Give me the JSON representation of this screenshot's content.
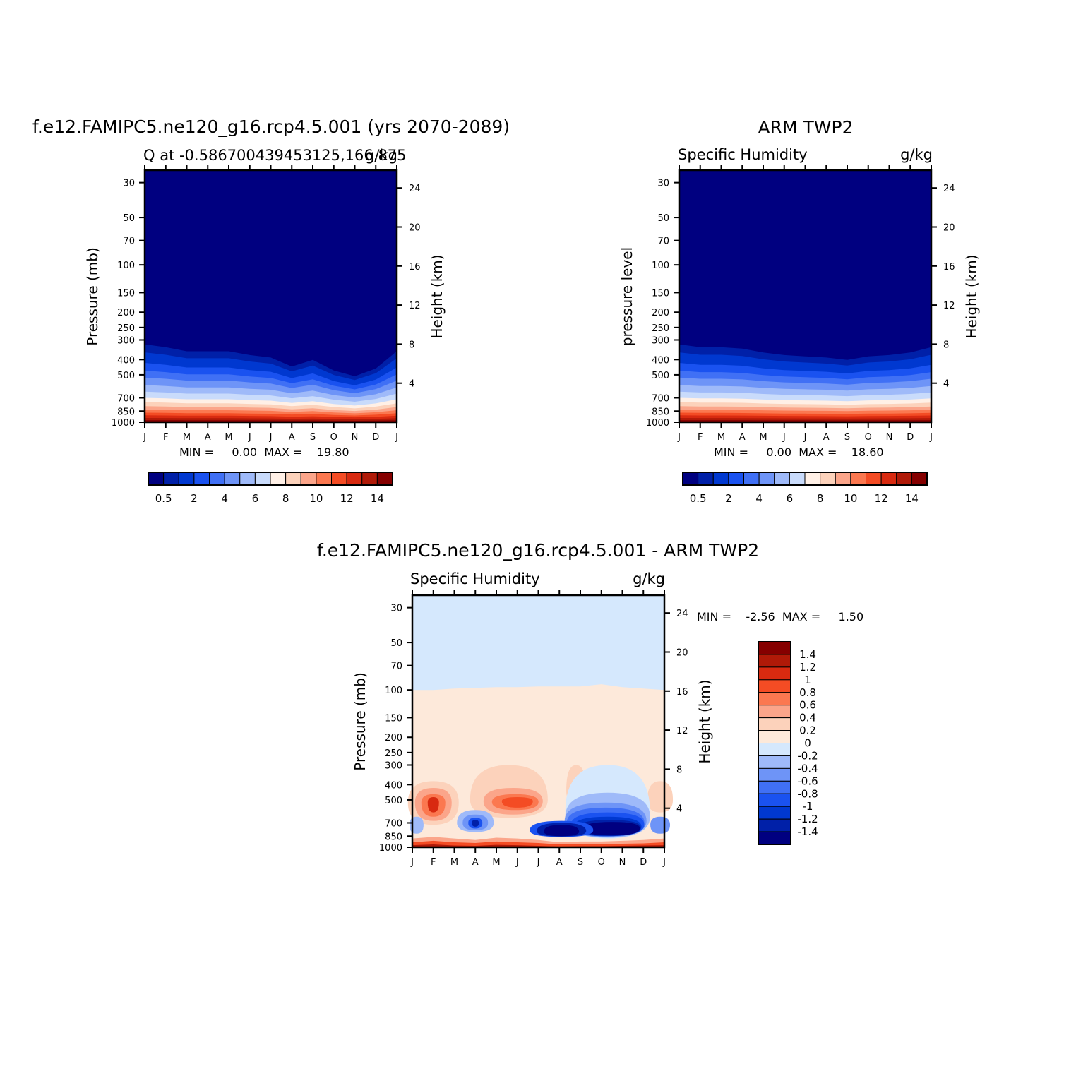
{
  "palette": {
    "abs": [
      "#000080",
      "#0020a8",
      "#0038d0",
      "#1a52f0",
      "#4070f5",
      "#6e94f7",
      "#9fbaf9",
      "#c9dbfb",
      "#fff0e6",
      "#fcd2bb",
      "#fba58a",
      "#fb7850",
      "#f44c24",
      "#d82a10",
      "#b01a08",
      "#850000"
    ],
    "diff": [
      "#000080",
      "#0020a8",
      "#0038d0",
      "#1a52f0",
      "#4070f5",
      "#6e94f7",
      "#9fbaf9",
      "#d5e8fd",
      "#fde9da",
      "#fcd2bb",
      "#fba58a",
      "#fb7850",
      "#f44c24",
      "#d82a10",
      "#b01a08",
      "#850000"
    ]
  },
  "months": [
    "J",
    "F",
    "M",
    "A",
    "M",
    "J",
    "J",
    "A",
    "S",
    "O",
    "N",
    "D",
    "J"
  ],
  "pressure_ticks": [
    "30",
    "50",
    "70",
    "100",
    "150",
    "200",
    "250",
    "300",
    "400",
    "500",
    "700",
    "850",
    "1000"
  ],
  "height_ticks": [
    "24",
    "20",
    "16",
    "12",
    "8",
    "4"
  ],
  "panels": {
    "left": {
      "title": "f.e12.FAMIPC5.ne120_g16.rcp4.5.001 (yrs 2070-2089)",
      "subtitle_left": "Q at -0.586700439453125,166.875",
      "subtitle_right": "g/kg",
      "ylabel": "Pressure (mb)",
      "y2label": "Height (km)",
      "stats": "MIN =     0.00  MAX =    19.80"
    },
    "right": {
      "title": "ARM TWP2",
      "subtitle_left": "Specific Humidity",
      "subtitle_right": "g/kg",
      "ylabel": "pressure level",
      "y2label": "Height (km)",
      "stats": "MIN =     0.00  MAX =    18.60"
    },
    "diff": {
      "title": "f.e12.FAMIPC5.ne120_g16.rcp4.5.001 - ARM TWP2",
      "subtitle_left": "Specific Humidity",
      "subtitle_right": "g/kg",
      "ylabel": "Pressure (mb)",
      "y2label": "Height (km)",
      "stats": "MIN =    -2.56  MAX =     1.50"
    }
  },
  "colorbars": {
    "abs_labels": [
      "0.5",
      "2",
      "4",
      "6",
      "8",
      "10",
      "12",
      "14"
    ],
    "diff_labels": [
      "1.4",
      "1.2",
      "1",
      "0.8",
      "0.6",
      "0.4",
      "0.2",
      "0",
      "-0.2",
      "-0.4",
      "-0.6",
      "-0.8",
      "-1",
      "-1.2",
      "-1.4"
    ]
  },
  "chart_data": [
    {
      "type": "heatmap",
      "title": "f.e12.FAMIPC5.ne120_g16.rcp4.5.001 (yrs 2070-2089)",
      "subtitle": "Q at -0.586700439453125,166.875",
      "units": "g/kg",
      "x": [
        "J",
        "F",
        "M",
        "A",
        "M",
        "J",
        "J",
        "A",
        "S",
        "O",
        "N",
        "D",
        "J"
      ],
      "pressure_levels_mb": [
        1000,
        850,
        700,
        500,
        400,
        300,
        250,
        200,
        150,
        100,
        70,
        50,
        30
      ],
      "ylabel": "Pressure (mb)",
      "y2label": "Height (km)",
      "levels": [
        0.5,
        1,
        2,
        3,
        4,
        5,
        6,
        7,
        8,
        9,
        10,
        11,
        12,
        13,
        14
      ],
      "approx_q_at_levels": {
        "1000": [
          19,
          19,
          19.5,
          19.5,
          19.5,
          19.5,
          19,
          18.5,
          19,
          18.5,
          18.5,
          18.5,
          19
        ],
        "850": [
          13,
          13.5,
          14,
          14,
          14,
          14,
          13.5,
          12,
          12.5,
          11.5,
          11,
          11.5,
          13
        ],
        "700": [
          8,
          8.5,
          9,
          9,
          9,
          9,
          8.5,
          7,
          7.5,
          6.5,
          6,
          6.5,
          8
        ],
        "500": [
          3.5,
          3.5,
          3.5,
          3,
          3.5,
          3.5,
          3,
          2.5,
          3,
          2.5,
          2,
          2.5,
          3.5
        ],
        "400": [
          1.8,
          1.8,
          1.8,
          1.6,
          1.6,
          1.5,
          1.4,
          1.2,
          1.5,
          1.1,
          0.9,
          1.2,
          1.8
        ],
        "300": [
          0.5,
          0.5,
          0.45,
          0.45,
          0.45,
          0.4,
          0.4,
          0.3,
          0.45,
          0.3,
          0.25,
          0.3,
          0.5
        ],
        "200": [
          0.05,
          0.05,
          0.05,
          0.05,
          0.05,
          0.05,
          0.05,
          0.05,
          0.05,
          0.05,
          0.05,
          0.05,
          0.05
        ]
      },
      "min": 0.0,
      "max": 19.8
    },
    {
      "type": "heatmap",
      "title": "ARM TWP2",
      "subtitle": "Specific Humidity",
      "units": "g/kg",
      "x": [
        "J",
        "F",
        "M",
        "A",
        "M",
        "J",
        "J",
        "A",
        "S",
        "O",
        "N",
        "D",
        "J"
      ],
      "pressure_levels_mb": [
        1000,
        850,
        700,
        500,
        400,
        300,
        250,
        200,
        150,
        100,
        70,
        50,
        30
      ],
      "ylabel": "pressure level",
      "y2label": "Height (km)",
      "levels": [
        0.5,
        1,
        2,
        3,
        4,
        5,
        6,
        7,
        8,
        9,
        10,
        11,
        12,
        13,
        14
      ],
      "approx_q_at_levels": {
        "1000": [
          18.5,
          18.5,
          18.5,
          18.5,
          18.5,
          18.5,
          18.5,
          18.5,
          18.5,
          18.5,
          18.5,
          18.5,
          18.5
        ],
        "850": [
          12.5,
          13,
          13.5,
          13.5,
          13,
          12.5,
          12.5,
          12,
          12,
          12,
          12.5,
          12.5,
          12.5
        ],
        "700": [
          8,
          8.5,
          8.5,
          8.5,
          8,
          7.5,
          7.5,
          7,
          7,
          7,
          7.5,
          7.5,
          8
        ],
        "500": [
          3.5,
          3.5,
          3.5,
          3.5,
          3.2,
          3,
          3,
          3,
          2.8,
          2.8,
          3,
          3.2,
          3.5
        ],
        "400": [
          1.8,
          1.8,
          1.8,
          1.8,
          1.6,
          1.5,
          1.5,
          1.4,
          1.3,
          1.4,
          1.5,
          1.6,
          1.8
        ],
        "300": [
          0.5,
          0.5,
          0.5,
          0.5,
          0.45,
          0.4,
          0.4,
          0.4,
          0.35,
          0.4,
          0.4,
          0.45,
          0.5
        ],
        "200": [
          0.05,
          0.05,
          0.05,
          0.05,
          0.05,
          0.05,
          0.05,
          0.05,
          0.05,
          0.05,
          0.05,
          0.05,
          0.05
        ]
      },
      "min": 0.0,
      "max": 18.6
    },
    {
      "type": "heatmap",
      "title": "f.e12.FAMIPC5.ne120_g16.rcp4.5.001 - ARM TWP2",
      "subtitle": "Specific Humidity",
      "units": "g/kg",
      "x": [
        "J",
        "F",
        "M",
        "A",
        "M",
        "J",
        "J",
        "A",
        "S",
        "O",
        "N",
        "D",
        "J"
      ],
      "pressure_levels_mb": [
        1000,
        850,
        700,
        500,
        400,
        300,
        250,
        200,
        150,
        100,
        70,
        50,
        30
      ],
      "ylabel": "Pressure (mb)",
      "y2label": "Height (km)",
      "levels": [
        -1.4,
        -1.2,
        -1,
        -0.8,
        -0.6,
        -0.4,
        -0.2,
        0,
        0.2,
        0.4,
        0.6,
        0.8,
        1,
        1.2,
        1.4
      ],
      "approx_dq_at_levels": {
        "1000": [
          0.5,
          0.5,
          0.3,
          0.3,
          0.8,
          0.6,
          0.3,
          0.3,
          0.4,
          0.2,
          0.5,
          0.4,
          0.5
        ],
        "850": [
          -0.3,
          0.2,
          0.1,
          -0.3,
          0.4,
          0.3,
          0.1,
          -1.0,
          -0.6,
          -1.5,
          -2.0,
          -1.5,
          -0.3
        ],
        "700": [
          -0.3,
          0.4,
          -0.2,
          -1.0,
          0.2,
          0.1,
          -0.3,
          -1.6,
          -1.2,
          -2.2,
          -2.56,
          -2.0,
          -0.3
        ],
        "500": [
          0.3,
          1.2,
          0.4,
          0.2,
          0.9,
          0.8,
          0.2,
          0.1,
          0.4,
          -0.4,
          -0.8,
          -0.4,
          0.3
        ],
        "400": [
          0.2,
          0.5,
          0.2,
          0.2,
          0.4,
          0.3,
          0.2,
          0.1,
          0.3,
          -0.2,
          -0.2,
          0.1,
          0.2
        ],
        "300": [
          0.1,
          0.1,
          0.1,
          0.1,
          0.3,
          0.1,
          0.1,
          0.1,
          0.3,
          -0.1,
          -0.1,
          0.1,
          0.1
        ],
        "100": [
          0.0,
          0.0,
          0.0,
          0.0,
          0.0,
          0.0,
          0.0,
          0.0,
          0.0,
          0.0,
          0.0,
          0.0,
          0.0
        ],
        "30": [
          -0.05,
          -0.05,
          -0.05,
          -0.05,
          -0.05,
          -0.05,
          -0.05,
          -0.05,
          -0.05,
          -0.05,
          -0.05,
          -0.05,
          -0.05
        ]
      },
      "min": -2.56,
      "max": 1.5
    }
  ]
}
